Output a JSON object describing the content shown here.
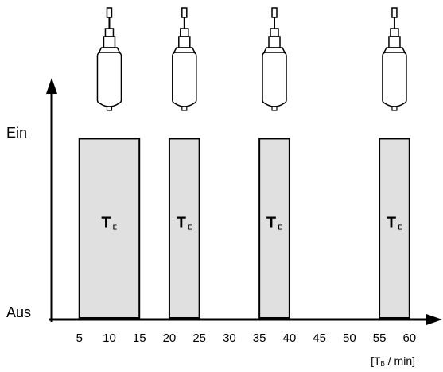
{
  "chart_data": {
    "type": "bar",
    "x_start": [
      5,
      20,
      35,
      55
    ],
    "x_end": [
      15,
      25,
      40,
      60
    ],
    "values": [
      1,
      1,
      1,
      1
    ],
    "bar_label": "T",
    "bar_label_sub": "E",
    "color": "#e0e0e0",
    "xlim": [
      0,
      64
    ],
    "xticks": [
      5,
      10,
      15,
      20,
      25,
      30,
      35,
      40,
      45,
      50,
      55,
      60
    ],
    "ylim": [
      0,
      1.33
    ],
    "yticks": [
      {
        "value": 0,
        "label": "Aus"
      },
      {
        "value": 1,
        "label": "Ein"
      }
    ],
    "xlabel_parts": [
      "[T",
      "B",
      " / min]"
    ]
  }
}
